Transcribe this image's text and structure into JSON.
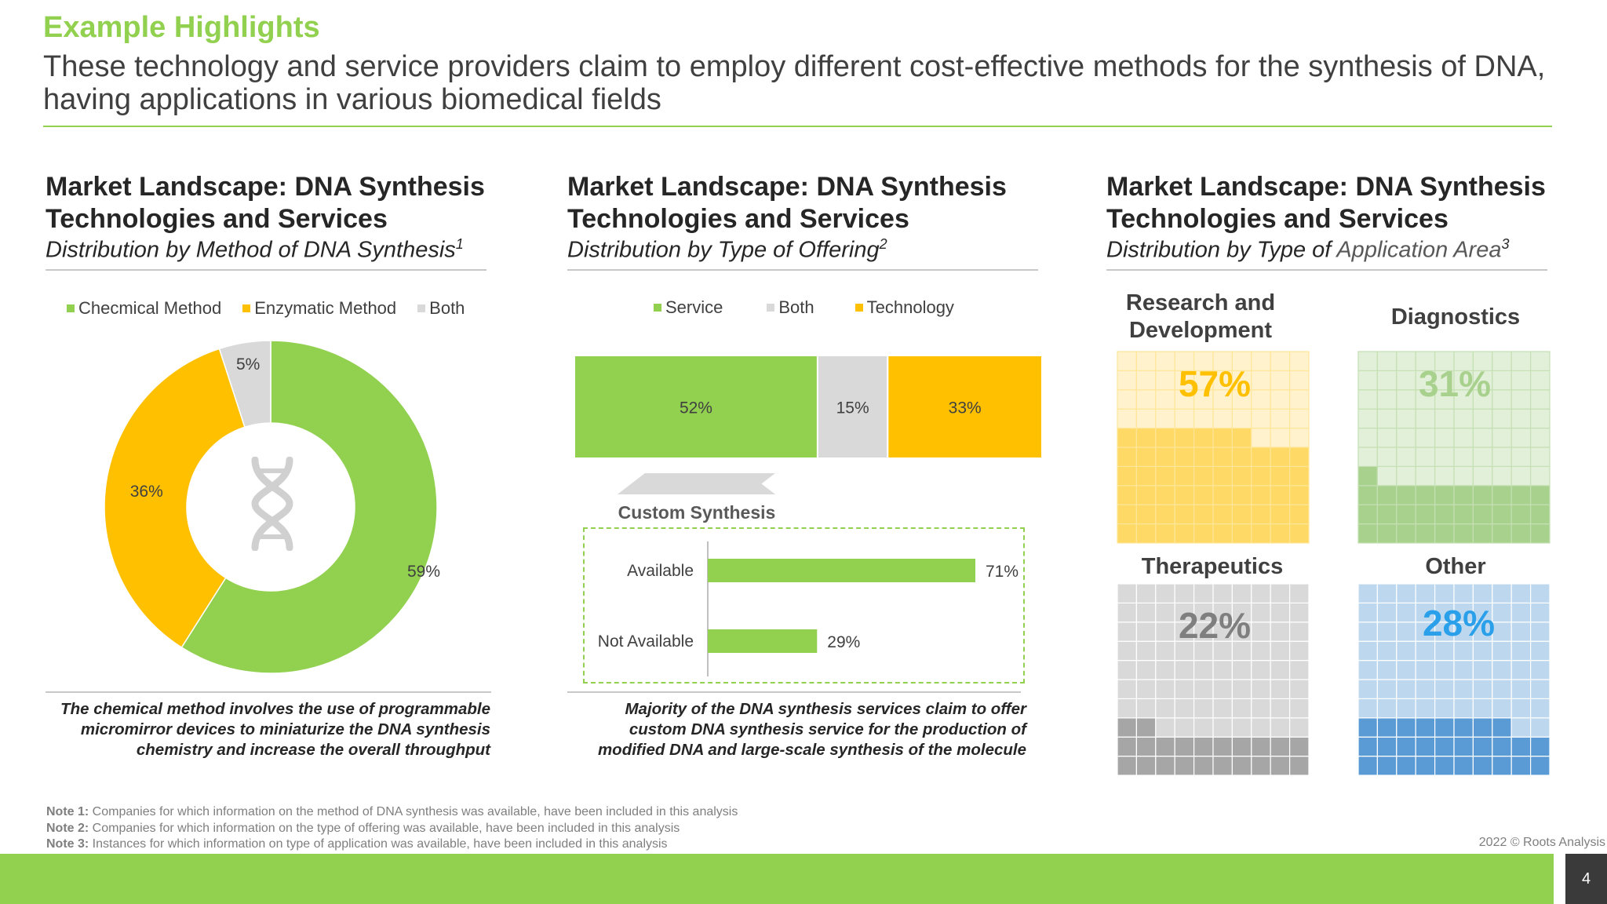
{
  "header": {
    "title": "Example Highlights",
    "subtitle": "These technology and service providers claim to employ different cost-effective methods for the synthesis of DNA, having applications in various biomedical fields"
  },
  "panels": [
    {
      "title_line1": "Market Landscape: DNA Synthesis",
      "title_line2": "Technologies and Services",
      "subtitle": "Distribution by Method of DNA Synthesis",
      "note_ref": "1",
      "caption_lines": [
        "The chemical method involves the use of programmable",
        "micromirror devices to miniaturize the DNA synthesis",
        "chemistry and increase the overall throughput"
      ]
    },
    {
      "title_line1": "Market Landscape: DNA Synthesis",
      "title_line2": "Technologies and Services",
      "subtitle": "Distribution by Type of Offering",
      "note_ref": "2",
      "caption_lines": [
        "Majority of the DNA synthesis services claim to offer",
        "custom DNA synthesis service for the production of",
        "modified DNA and large-scale synthesis of the molecule"
      ]
    },
    {
      "title_line1": "Market Landscape: DNA Synthesis",
      "title_line2": "Technologies and Services",
      "subtitle_prefix": "Distribution by Type of ",
      "subtitle_suffix": "Application Area",
      "note_ref": "3"
    }
  ],
  "colors": {
    "green": "#92d050",
    "amber": "#ffc000",
    "grey": "#d9d9d9",
    "blue": "#5b9bd5",
    "dark_grey": "#7f7f7f"
  },
  "icons": {
    "donut_center": "dna-helix-icon"
  },
  "chart_data": [
    {
      "type": "pie",
      "variant": "donut",
      "categories": [
        "Checmical Method",
        "Enzymatic Method",
        "Both"
      ],
      "values": [
        59,
        36,
        5
      ],
      "labels": [
        "59%",
        "36%",
        "5%"
      ],
      "colors": [
        "#92d050",
        "#ffc000",
        "#d9d9d9"
      ],
      "legend_position": "top"
    },
    {
      "type": "bar",
      "variant": "stacked-100",
      "orientation": "horizontal",
      "categories": [
        "Service",
        "Both",
        "Technology"
      ],
      "values": [
        52,
        15,
        33
      ],
      "labels": [
        "52%",
        "15%",
        "33%"
      ],
      "colors": [
        "#92d050",
        "#d9d9d9",
        "#ffc000"
      ],
      "legend_position": "top"
    },
    {
      "type": "bar",
      "orientation": "horizontal",
      "title": "Custom Synthesis",
      "categories": [
        "Available",
        "Not Available"
      ],
      "values": [
        71,
        29
      ],
      "labels": [
        "71%",
        "29%"
      ],
      "colors": [
        "#92d050",
        "#92d050"
      ]
    },
    {
      "type": "table",
      "variant": "waffle",
      "categories": [
        "Research and Development",
        "Diagnostics",
        "Therapeutics",
        "Other"
      ],
      "values": [
        57,
        31,
        22,
        28
      ],
      "labels": [
        "57%",
        "31%",
        "22%",
        "28%"
      ],
      "colors": [
        "#ffc000",
        "#92d050",
        "#7f7f7f",
        "#5b9bd5"
      ]
    }
  ],
  "notes": [
    {
      "label": "Note 1:",
      "text": " Companies for which information on the method of DNA synthesis was available, have been included in this analysis"
    },
    {
      "label": "Note 2:",
      "text": " Companies for which information on the type of offering was available, have been included in this analysis"
    },
    {
      "label": "Note 3:",
      "text": " Instances for which information on type of application was available, have been included in this analysis"
    }
  ],
  "footer": {
    "copyright": "2022 © Roots Analysis",
    "page_number": "4"
  }
}
